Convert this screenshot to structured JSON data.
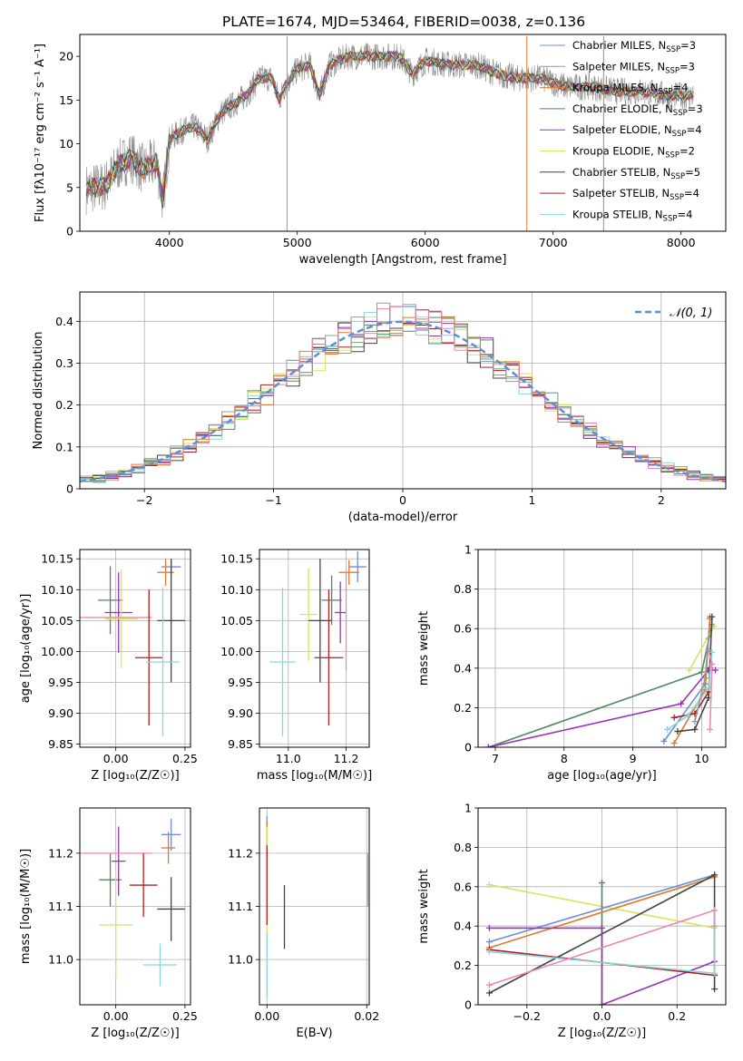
{
  "figure": {
    "title": "PLATE=1674, MJD=53464, FIBERID=0038, z=0.136",
    "colors": {
      "chabrier_miles": "#6b8fd8",
      "salpeter_miles": "#999999",
      "kroupa_miles": "#e0792b",
      "chabrier_elodie": "#4f8a5b",
      "salpeter_elodie": "#9a32b8",
      "kroupa_elodie": "#d7e35a",
      "chabrier_stelib": "#444444",
      "salpeter_stelib": "#b31d1d",
      "kroupa_stelib": "#86d7dc",
      "pink": "#e58ab8",
      "gaussian": "#5b8fd6"
    }
  },
  "chart_data": [
    {
      "id": "spectrum",
      "type": "line",
      "xlabel": "wavelength [Angstrom, rest frame]",
      "ylabel": "Flux [fλ10⁻¹⁷ erg cm⁻² s⁻¹ A⁻¹]",
      "xlim": [
        3300,
        8350
      ],
      "ylim": [
        0,
        22.5
      ],
      "xticks": [
        4000,
        5000,
        6000,
        7000,
        8000
      ],
      "yticks": [
        0,
        5,
        10,
        15,
        20
      ],
      "grid": false,
      "legend_position": "top-right",
      "legend": [
        {
          "name": "Chabrier MILES, N",
          "sub": "SSP",
          "tail": "=3",
          "color": "#6b8fd8"
        },
        {
          "name": "Salpeter MILES, N",
          "sub": "SSP",
          "tail": "=3",
          "color": "#999999"
        },
        {
          "name": "Kroupa MILES, N",
          "sub": "SSP",
          "tail": "=4",
          "color": "#e0792b"
        },
        {
          "name": "Chabrier ELODIE, N",
          "sub": "SSP",
          "tail": "=3",
          "color": "#4f8a5b"
        },
        {
          "name": "Salpeter ELODIE, N",
          "sub": "SSP",
          "tail": "=4",
          "color": "#9a32b8"
        },
        {
          "name": "Kroupa ELODIE, N",
          "sub": "SSP",
          "tail": "=2",
          "color": "#d7e35a"
        },
        {
          "name": "Chabrier STELIB, N",
          "sub": "SSP",
          "tail": "=5",
          "color": "#444444"
        },
        {
          "name": "Salpeter STELIB, N",
          "sub": "SSP",
          "tail": "=4",
          "color": "#b31d1d"
        },
        {
          "name": "Kroupa STELIB, N",
          "sub": "SSP",
          "tail": "=4",
          "color": "#86d7dc"
        }
      ],
      "spectrum_anchor_points": [
        [
          3350,
          4.8
        ],
        [
          3500,
          5.2
        ],
        [
          3600,
          7.5
        ],
        [
          3700,
          8.5
        ],
        [
          3800,
          7.0
        ],
        [
          3900,
          8.0
        ],
        [
          3950,
          3.5
        ],
        [
          4000,
          10.5
        ],
        [
          4100,
          11.5
        ],
        [
          4200,
          12.0
        ],
        [
          4300,
          10.5
        ],
        [
          4400,
          13.5
        ],
        [
          4500,
          14.5
        ],
        [
          4600,
          15.5
        ],
        [
          4700,
          17.5
        ],
        [
          4800,
          17.5
        ],
        [
          4860,
          15.0
        ],
        [
          4900,
          16.5
        ],
        [
          5000,
          18.5
        ],
        [
          5100,
          19.0
        ],
        [
          5175,
          15.5
        ],
        [
          5250,
          19.0
        ],
        [
          5400,
          20.0
        ],
        [
          5600,
          20.0
        ],
        [
          5800,
          20.0
        ],
        [
          5900,
          18.0
        ],
        [
          6000,
          19.5
        ],
        [
          6200,
          19.0
        ],
        [
          6400,
          19.0
        ],
        [
          6565,
          18.0
        ],
        [
          6700,
          17.5
        ],
        [
          6900,
          17.5
        ],
        [
          7100,
          16.5
        ],
        [
          7300,
          16.5
        ],
        [
          7500,
          16.0
        ],
        [
          7700,
          16.0
        ],
        [
          7900,
          15.5
        ],
        [
          8100,
          15.5
        ]
      ],
      "vertical_spikes": [
        {
          "x": 4920,
          "color": "#999999"
        },
        {
          "x": 6795,
          "color": "#e0792b"
        },
        {
          "x": 7395,
          "color": "#e0792b"
        }
      ]
    },
    {
      "id": "residuals",
      "type": "line",
      "xlabel": "(data-model)/error",
      "ylabel": "Normed distribution",
      "xlim": [
        -2.5,
        2.5
      ],
      "ylim": [
        0,
        0.47
      ],
      "xticks": [
        -2,
        -1,
        0,
        1,
        2
      ],
      "yticks": [
        0.0,
        0.1,
        0.2,
        0.3,
        0.4
      ],
      "grid": true,
      "legend_position": "top-right",
      "legend": [
        {
          "name": "𝒩(0, 1)",
          "color": "#5b8fd6",
          "style": "dashed"
        }
      ],
      "bin_width": 0.1,
      "histogram_centers": [
        -2.45,
        -2.35,
        -2.25,
        -2.15,
        -2.05,
        -1.95,
        -1.85,
        -1.75,
        -1.65,
        -1.55,
        -1.45,
        -1.35,
        -1.25,
        -1.15,
        -1.05,
        -0.95,
        -0.85,
        -0.75,
        -0.65,
        -0.55,
        -0.45,
        -0.35,
        -0.25,
        -0.15,
        -0.05,
        0.05,
        0.15,
        0.25,
        0.35,
        0.45,
        0.55,
        0.65,
        0.75,
        0.85,
        0.95,
        1.05,
        1.15,
        1.25,
        1.35,
        1.45,
        1.55,
        1.65,
        1.75,
        1.85,
        1.95,
        2.05,
        2.15,
        2.25,
        2.35,
        2.45
      ]
    },
    {
      "id": "age_vs_Z",
      "type": "scatter",
      "xlabel": "Z [log₁₀(Z/Z☉)]",
      "ylabel": "age  [log₁₀(age/yr)]",
      "xlim": [
        -0.13,
        0.27
      ],
      "ylim": [
        9.845,
        10.165
      ],
      "xticks": [
        0.0,
        0.25
      ],
      "xticklabels": [
        "0.00",
        "0.25"
      ],
      "yticks": [
        9.85,
        9.9,
        9.95,
        10.0,
        10.05,
        10.1,
        10.15
      ],
      "yticklabels": [
        "9.85",
        "9.90",
        "9.95",
        "10.00",
        "10.05",
        "10.10",
        "10.15"
      ],
      "grid": true,
      "points": [
        {
          "x": 0.2,
          "y": 10.137,
          "xerr": 0.035,
          "yerr": 0.013,
          "color": "#6b8fd8"
        },
        {
          "x": 0.18,
          "y": 10.128,
          "xerr": 0.03,
          "yerr": 0.022,
          "color": "#e0792b"
        },
        {
          "x": -0.02,
          "y": 10.083,
          "xerr": 0.045,
          "yerr": 0.055,
          "color": "#4f8a5b"
        },
        {
          "x": 0.01,
          "y": 10.063,
          "xerr": 0.05,
          "yerr": 0.065,
          "color": "#9a32b8"
        },
        {
          "x": 0.02,
          "y": 10.053,
          "xerr": 0.06,
          "yerr": 0.08,
          "color": "#d7e35a"
        },
        {
          "x": 0.0,
          "y": 10.055,
          "xerr": 0.13,
          "yerr": 0.0,
          "color": "#e58ab8"
        },
        {
          "x": 0.2,
          "y": 10.05,
          "xerr": 0.05,
          "yerr": 0.1,
          "color": "#444444"
        },
        {
          "x": 0.12,
          "y": 9.99,
          "xerr": 0.05,
          "yerr": 0.11,
          "color": "#b31d1d"
        },
        {
          "x": 0.17,
          "y": 9.983,
          "xerr": 0.06,
          "yerr": 0.12,
          "color": "#86d7dc"
        }
      ]
    },
    {
      "id": "age_vs_mass",
      "type": "scatter",
      "xlabel": "mass [log₁₀(M/M☉)]",
      "ylabel": "",
      "xlim": [
        10.9,
        11.28
      ],
      "ylim": [
        9.845,
        10.165
      ],
      "xticks": [
        11.0,
        11.2
      ],
      "xticklabels": [
        "11.0",
        "11.2"
      ],
      "yticks": [
        9.85,
        9.9,
        9.95,
        10.0,
        10.05,
        10.1,
        10.15
      ],
      "yticklabels": [
        "9.85",
        "9.90",
        "9.95",
        "10.00",
        "10.05",
        "10.10",
        "10.15"
      ],
      "grid": true,
      "points": [
        {
          "x": 11.24,
          "y": 10.137,
          "xerr": 0.03,
          "yerr": 0.025,
          "color": "#6b8fd8"
        },
        {
          "x": 11.21,
          "y": 10.128,
          "xerr": 0.035,
          "yerr": 0.02,
          "color": "#e0792b"
        },
        {
          "x": 11.15,
          "y": 10.083,
          "xerr": 0.035,
          "yerr": 0.04,
          "color": "#4f8a5b"
        },
        {
          "x": 11.18,
          "y": 10.063,
          "xerr": 0.02,
          "yerr": 0.05,
          "color": "#9a32b8"
        },
        {
          "x": 11.07,
          "y": 10.06,
          "xerr": 0.03,
          "yerr": 0.075,
          "color": "#d7e35a"
        },
        {
          "x": 11.2,
          "y": 10.05,
          "xerr": 0.0,
          "yerr": 0.08,
          "color": "#e58ab8"
        },
        {
          "x": 11.11,
          "y": 10.05,
          "xerr": 0.04,
          "yerr": 0.1,
          "color": "#444444"
        },
        {
          "x": 11.14,
          "y": 9.99,
          "xerr": 0.05,
          "yerr": 0.11,
          "color": "#b31d1d"
        },
        {
          "x": 10.98,
          "y": 9.983,
          "xerr": 0.045,
          "yerr": 0.12,
          "color": "#86d7dc"
        }
      ]
    },
    {
      "id": "mass_weight_vs_age",
      "type": "line",
      "xlabel": "age  [log₁₀(age/yr)]",
      "ylabel": "mass weight",
      "xlim": [
        6.75,
        10.35
      ],
      "ylim": [
        0,
        1
      ],
      "xticks": [
        7,
        8,
        9,
        10
      ],
      "yticks": [
        0.0,
        0.2,
        0.4,
        0.6,
        0.8,
        1.0
      ],
      "grid": true,
      "series": [
        {
          "color": "#4f8a5b",
          "points": [
            [
              6.9,
              0.0
            ],
            [
              10.0,
              0.38
            ],
            [
              10.15,
              0.62
            ]
          ]
        },
        {
          "color": "#9a32b8",
          "points": [
            [
              6.9,
              0.0
            ],
            [
              9.7,
              0.22
            ],
            [
              10.1,
              0.39
            ],
            [
              10.2,
              0.39
            ]
          ]
        },
        {
          "color": "#d7e35a",
          "points": [
            [
              9.82,
              0.39
            ],
            [
              10.18,
              0.61
            ]
          ]
        },
        {
          "color": "#6b8fd8",
          "points": [
            [
              9.45,
              0.03
            ],
            [
              10.05,
              0.32
            ],
            [
              10.12,
              0.65
            ]
          ]
        },
        {
          "color": "#e0792b",
          "points": [
            [
              9.6,
              0.02
            ],
            [
              10.05,
              0.29
            ],
            [
              10.12,
              0.66
            ]
          ]
        },
        {
          "color": "#444444",
          "points": [
            [
              9.65,
              0.08
            ],
            [
              9.9,
              0.09
            ],
            [
              10.1,
              0.25
            ],
            [
              10.15,
              0.66
            ]
          ]
        },
        {
          "color": "#b31d1d",
          "points": [
            [
              9.6,
              0.15
            ],
            [
              9.9,
              0.17
            ],
            [
              10.1,
              0.28
            ],
            [
              10.12,
              0.4
            ]
          ]
        },
        {
          "color": "#86d7dc",
          "points": [
            [
              9.5,
              0.09
            ],
            [
              9.8,
              0.16
            ],
            [
              10.1,
              0.3
            ],
            [
              10.15,
              0.48
            ]
          ]
        },
        {
          "color": "#e58ab8",
          "points": [
            [
              10.12,
              0.09
            ],
            [
              10.15,
              0.42
            ],
            [
              10.1,
              0.49
            ]
          ]
        },
        {
          "color": "#999999",
          "points": [
            [
              9.9,
              0.13
            ],
            [
              10.05,
              0.35
            ],
            [
              10.1,
              0.55
            ]
          ]
        }
      ]
    },
    {
      "id": "mass_vs_Z",
      "type": "scatter",
      "xlabel": "Z [log₁₀(Z/Z☉)]",
      "ylabel": "mass [log₁₀(M/M☉)]",
      "xlim": [
        -0.13,
        0.27
      ],
      "ylim": [
        10.915,
        11.285
      ],
      "xticks": [
        0.0,
        0.25
      ],
      "xticklabels": [
        "0.00",
        "0.25"
      ],
      "yticks": [
        11.0,
        11.1,
        11.2
      ],
      "yticklabels": [
        "11.0",
        "11.1",
        "11.2"
      ],
      "grid": true,
      "points": [
        {
          "x": 0.2,
          "y": 11.235,
          "xerr": 0.035,
          "yerr": 0.03,
          "color": "#6b8fd8"
        },
        {
          "x": 0.19,
          "y": 11.21,
          "xerr": 0.025,
          "yerr": 0.03,
          "color": "#e0792b"
        },
        {
          "x": -0.02,
          "y": 11.15,
          "xerr": 0.04,
          "yerr": 0.05,
          "color": "#4f8a5b"
        },
        {
          "x": 0.01,
          "y": 11.185,
          "xerr": 0.025,
          "yerr": 0.065,
          "color": "#9a32b8"
        },
        {
          "x": 0.0,
          "y": 11.065,
          "xerr": 0.06,
          "yerr": 0.1,
          "color": "#d7e35a"
        },
        {
          "x": 0.0,
          "y": 11.2,
          "xerr": 0.13,
          "yerr": 0.0,
          "color": "#e58ab8"
        },
        {
          "x": 0.2,
          "y": 11.095,
          "xerr": 0.05,
          "yerr": 0.06,
          "color": "#444444"
        },
        {
          "x": 0.1,
          "y": 11.14,
          "xerr": 0.05,
          "yerr": 0.06,
          "color": "#b31d1d"
        },
        {
          "x": 0.16,
          "y": 10.99,
          "xerr": 0.06,
          "yerr": 0.04,
          "color": "#86d7dc"
        }
      ]
    },
    {
      "id": "mass_vs_ebv",
      "type": "scatter",
      "xlabel": "E(B-V)",
      "ylabel": "",
      "xlim": [
        -0.0015,
        0.0205
      ],
      "ylim": [
        10.915,
        11.285
      ],
      "xticks": [
        0.0,
        0.02
      ],
      "xticklabels": [
        "0.00",
        "0.02"
      ],
      "yticks": [
        11.0,
        11.1,
        11.2
      ],
      "yticklabels": [
        "11.0",
        "11.1",
        "11.2"
      ],
      "grid": true,
      "points": [
        {
          "x": 0.0,
          "y": 11.2,
          "yerr": 0.07,
          "color": "#6b8fd8"
        },
        {
          "x": 0.0,
          "y": 11.2,
          "yerr": 0.06,
          "color": "#e0792b"
        },
        {
          "x": 0.0,
          "y": 11.15,
          "yerr": 0.07,
          "color": "#4f8a5b"
        },
        {
          "x": 0.0,
          "y": 11.15,
          "yerr": 0.1,
          "color": "#d7e35a"
        },
        {
          "x": 0.0,
          "y": 11.14,
          "yerr": 0.075,
          "color": "#b31d1d"
        },
        {
          "x": 0.0,
          "y": 10.99,
          "yerr": 0.06,
          "color": "#86d7dc"
        },
        {
          "x": 0.0035,
          "y": 11.08,
          "yerr": 0.06,
          "color": "#444444"
        },
        {
          "x": 0.0202,
          "y": 11.15,
          "yerr": 0.05,
          "color": "#e58ab8"
        }
      ]
    },
    {
      "id": "mass_weight_vs_Z",
      "type": "line",
      "xlabel": "Z [log₁₀(Z/Z☉)]",
      "ylabel": "mass weight",
      "xlim": [
        -0.33,
        0.33
      ],
      "ylim": [
        0,
        1
      ],
      "xticks": [
        -0.2,
        0.0,
        0.2
      ],
      "xticklabels": [
        "−0.2",
        "0.0",
        "0.2"
      ],
      "yticks": [
        0.0,
        0.2,
        0.4,
        0.6,
        0.8,
        1.0
      ],
      "grid": true,
      "series": [
        {
          "color": "#d7e35a",
          "points": [
            [
              -0.3,
              0.61
            ],
            [
              0.3,
              0.39
            ]
          ]
        },
        {
          "color": "#4f8a5b",
          "points": [
            [
              0.0,
              0.0
            ],
            [
              0.0,
              0.62
            ]
          ]
        },
        {
          "color": "#6b8fd8",
          "points": [
            [
              -0.3,
              0.32
            ],
            [
              0.3,
              0.66
            ]
          ]
        },
        {
          "color": "#e0792b",
          "points": [
            [
              -0.3,
              0.29
            ],
            [
              0.3,
              0.65
            ]
          ]
        },
        {
          "color": "#444444",
          "points": [
            [
              -0.3,
              0.06
            ],
            [
              0.3,
              0.66
            ],
            [
              0.3,
              0.08
            ]
          ]
        },
        {
          "color": "#9a32b8",
          "points": [
            [
              -0.3,
              0.39
            ],
            [
              0.0,
              0.39
            ],
            [
              0.0,
              0.0
            ],
            [
              0.3,
              0.22
            ]
          ]
        },
        {
          "color": "#b31d1d",
          "points": [
            [
              -0.3,
              0.28
            ],
            [
              0.3,
              0.15
            ]
          ]
        },
        {
          "color": "#86d7dc",
          "points": [
            [
              -0.3,
              0.27
            ],
            [
              0.3,
              0.16
            ],
            [
              0.3,
              0.48
            ]
          ]
        },
        {
          "color": "#e58ab8",
          "points": [
            [
              -0.3,
              0.1
            ],
            [
              0.3,
              0.48
            ],
            [
              0.3,
              0.4
            ]
          ]
        }
      ]
    }
  ]
}
